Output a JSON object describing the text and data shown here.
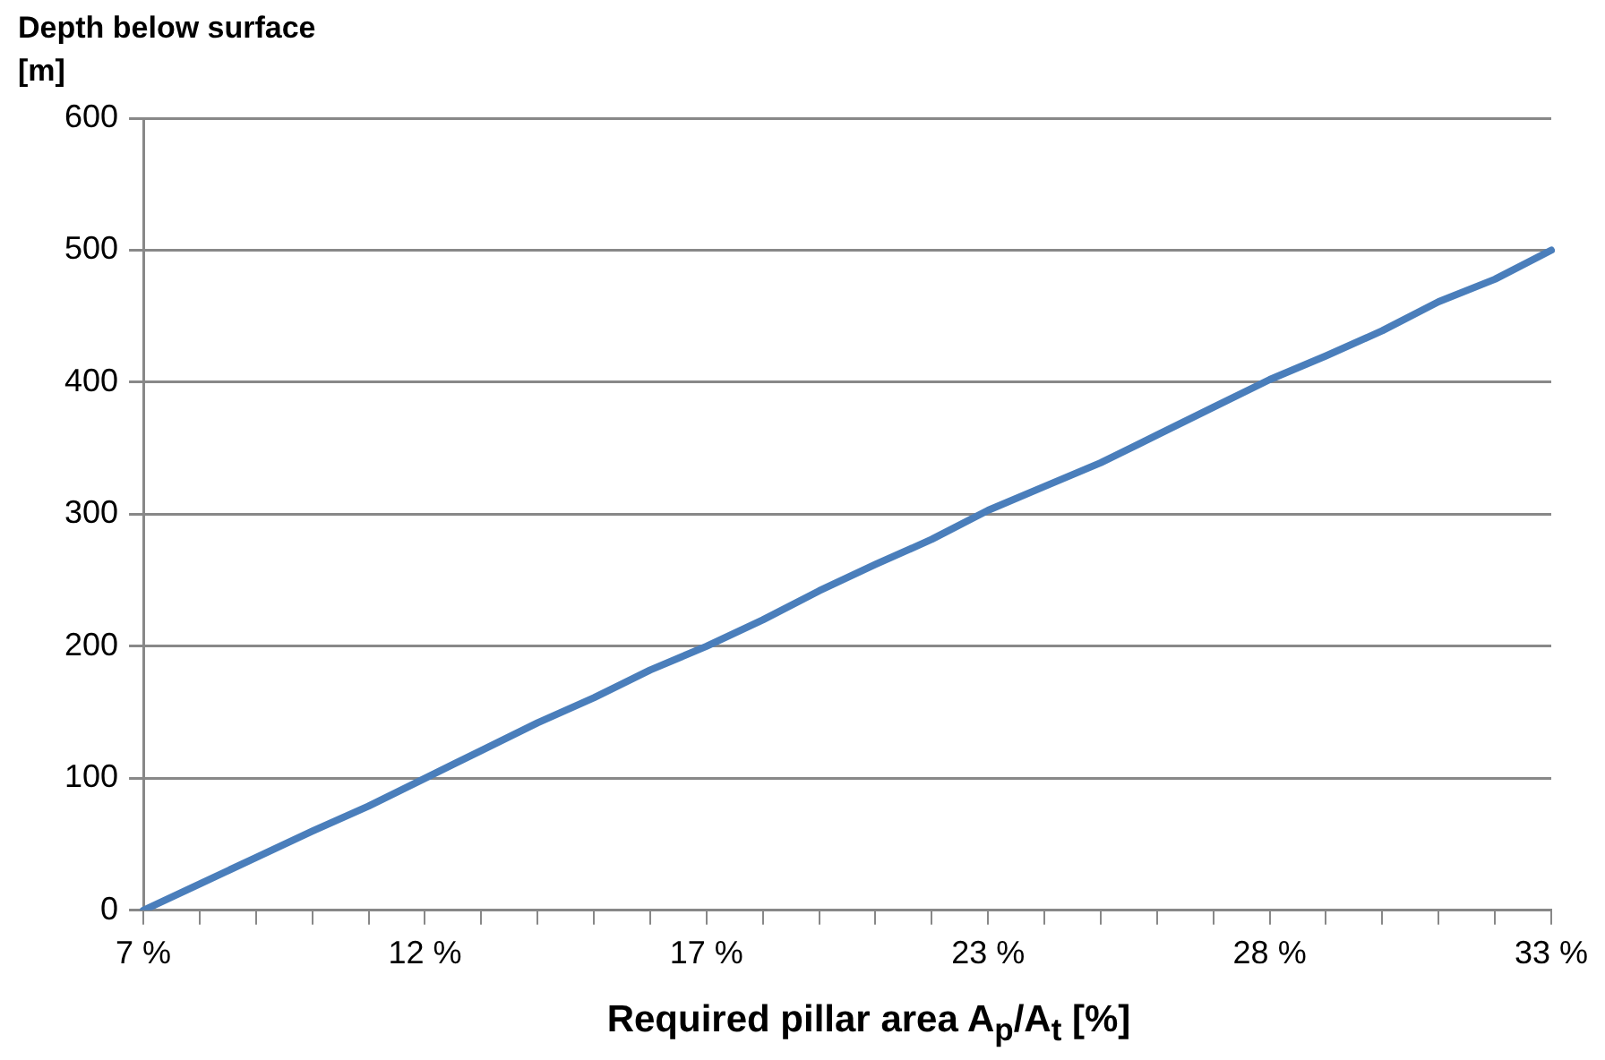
{
  "chart_data": {
    "type": "line",
    "xlabel": "Required pillar area A$_{p}$/A$_{t}$ [%]",
    "ylabel": "Depth below surface [m]",
    "categories": [
      "7 %",
      null,
      null,
      null,
      null,
      "12 %",
      null,
      null,
      null,
      null,
      "17 %",
      null,
      null,
      null,
      null,
      "23 %",
      null,
      null,
      null,
      null,
      "28 %",
      null,
      null,
      null,
      null,
      "33 %"
    ],
    "series": [
      {
        "color": "#4a7ebb",
        "values": [
          0,
          20,
          40,
          60,
          79,
          100,
          121,
          142,
          161,
          182,
          200,
          220,
          242,
          262,
          281,
          303,
          321,
          339,
          360,
          381,
          402,
          420,
          439,
          461,
          478,
          500
        ]
      }
    ],
    "ylim": [
      0,
      600
    ],
    "yticks": [
      0,
      100,
      200,
      300,
      400,
      500,
      600
    ],
    "grid": "y",
    "legend": false,
    "marker": "none",
    "line_style": "solid"
  }
}
